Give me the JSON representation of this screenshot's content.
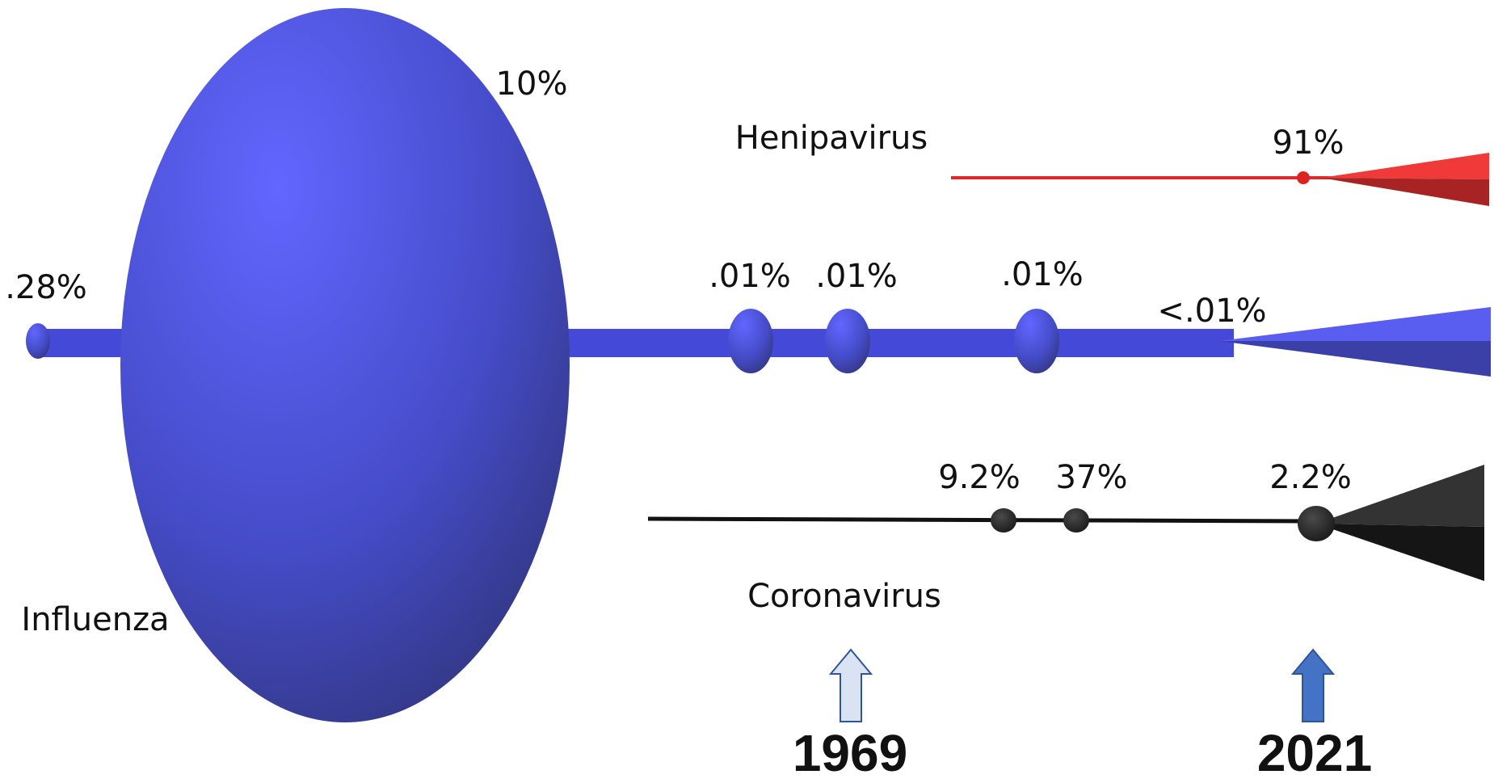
{
  "influenza": {
    "label": "Influenza",
    "rates": [
      ".28%",
      "10%",
      ".01%",
      ".01%",
      ".01%",
      "<.01%"
    ]
  },
  "henipavirus": {
    "label": "Henipavirus",
    "rates": [
      "91%"
    ]
  },
  "coronavirus": {
    "label": "Coronavirus",
    "rates": [
      "9.2%",
      "37%",
      "2.2%"
    ]
  },
  "years": [
    "1969",
    "2021"
  ]
}
